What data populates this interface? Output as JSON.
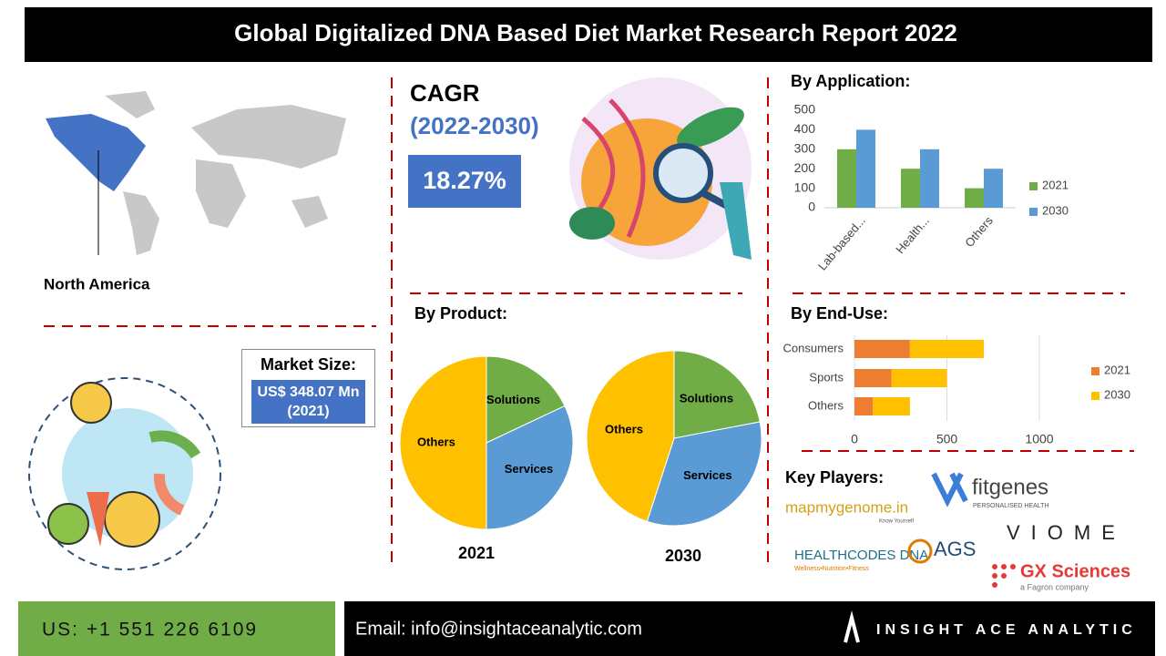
{
  "header": {
    "title": "Global  Digitalized DNA Based Diet Market Research Report 2022"
  },
  "region": {
    "label": "North America"
  },
  "cagr": {
    "label": "CAGR",
    "period": "(2022-2030)",
    "value": "18.27%"
  },
  "market_size": {
    "label": "Market Size:",
    "value": "US$ 348.07 Mn (2021)"
  },
  "chart_data": [
    {
      "type": "bar",
      "title": "By Application:",
      "categories": [
        "Lab-based...",
        "Health...",
        "Others"
      ],
      "series": [
        {
          "name": "2021",
          "color": "#70ad47",
          "values": [
            300,
            200,
            100
          ]
        },
        {
          "name": "2030",
          "color": "#5b9bd5",
          "values": [
            400,
            300,
            200
          ]
        }
      ],
      "ylim": [
        0,
        500
      ],
      "yticks": [
        0,
        100,
        200,
        300,
        400,
        500
      ],
      "grid": false,
      "legend": "right"
    },
    {
      "type": "pie",
      "title": "By Product:",
      "caption": "2021",
      "categories": [
        "Solutions",
        "Services",
        "Others"
      ],
      "values": [
        18,
        32,
        50
      ],
      "colors": [
        "#70ad47",
        "#5b9bd5",
        "#ffc000"
      ]
    },
    {
      "type": "pie",
      "caption": "2030",
      "categories": [
        "Solutions",
        "Services",
        "Others"
      ],
      "values": [
        22,
        33,
        45
      ],
      "colors": [
        "#70ad47",
        "#5b9bd5",
        "#ffc000"
      ]
    },
    {
      "type": "barh",
      "title": "By  End-Use:",
      "categories": [
        "Consumers",
        "Sports",
        "Others"
      ],
      "series": [
        {
          "name": "2021",
          "color": "#ed7d31",
          "values": [
            300,
            200,
            100
          ]
        },
        {
          "name": "2030",
          "color": "#ffc000",
          "values": [
            400,
            300,
            200
          ]
        }
      ],
      "xlim": [
        0,
        1000
      ],
      "xticks": [
        0,
        500,
        1000
      ],
      "stacked": true,
      "legend": "right"
    }
  ],
  "key_players": {
    "title": "Key Players:",
    "logos": [
      {
        "name": "mapmygenome.in",
        "tagline": "Know Yourself"
      },
      {
        "name": "fitgenes",
        "tagline": "PERSONALISED HEALTH"
      },
      {
        "name": "VIOME"
      },
      {
        "name": "HEALTHCODES DNA",
        "tagline": "Wellness•Nutrition•Fitness"
      },
      {
        "name": "AGS"
      },
      {
        "name": "GX Sciences",
        "tagline": "a Fagron company"
      }
    ]
  },
  "footer": {
    "phone": "US: +1 551 226 6109",
    "email": "Email: info@insightaceanalytic.com",
    "brand": "INSIGHT ACE ANALYTIC"
  }
}
